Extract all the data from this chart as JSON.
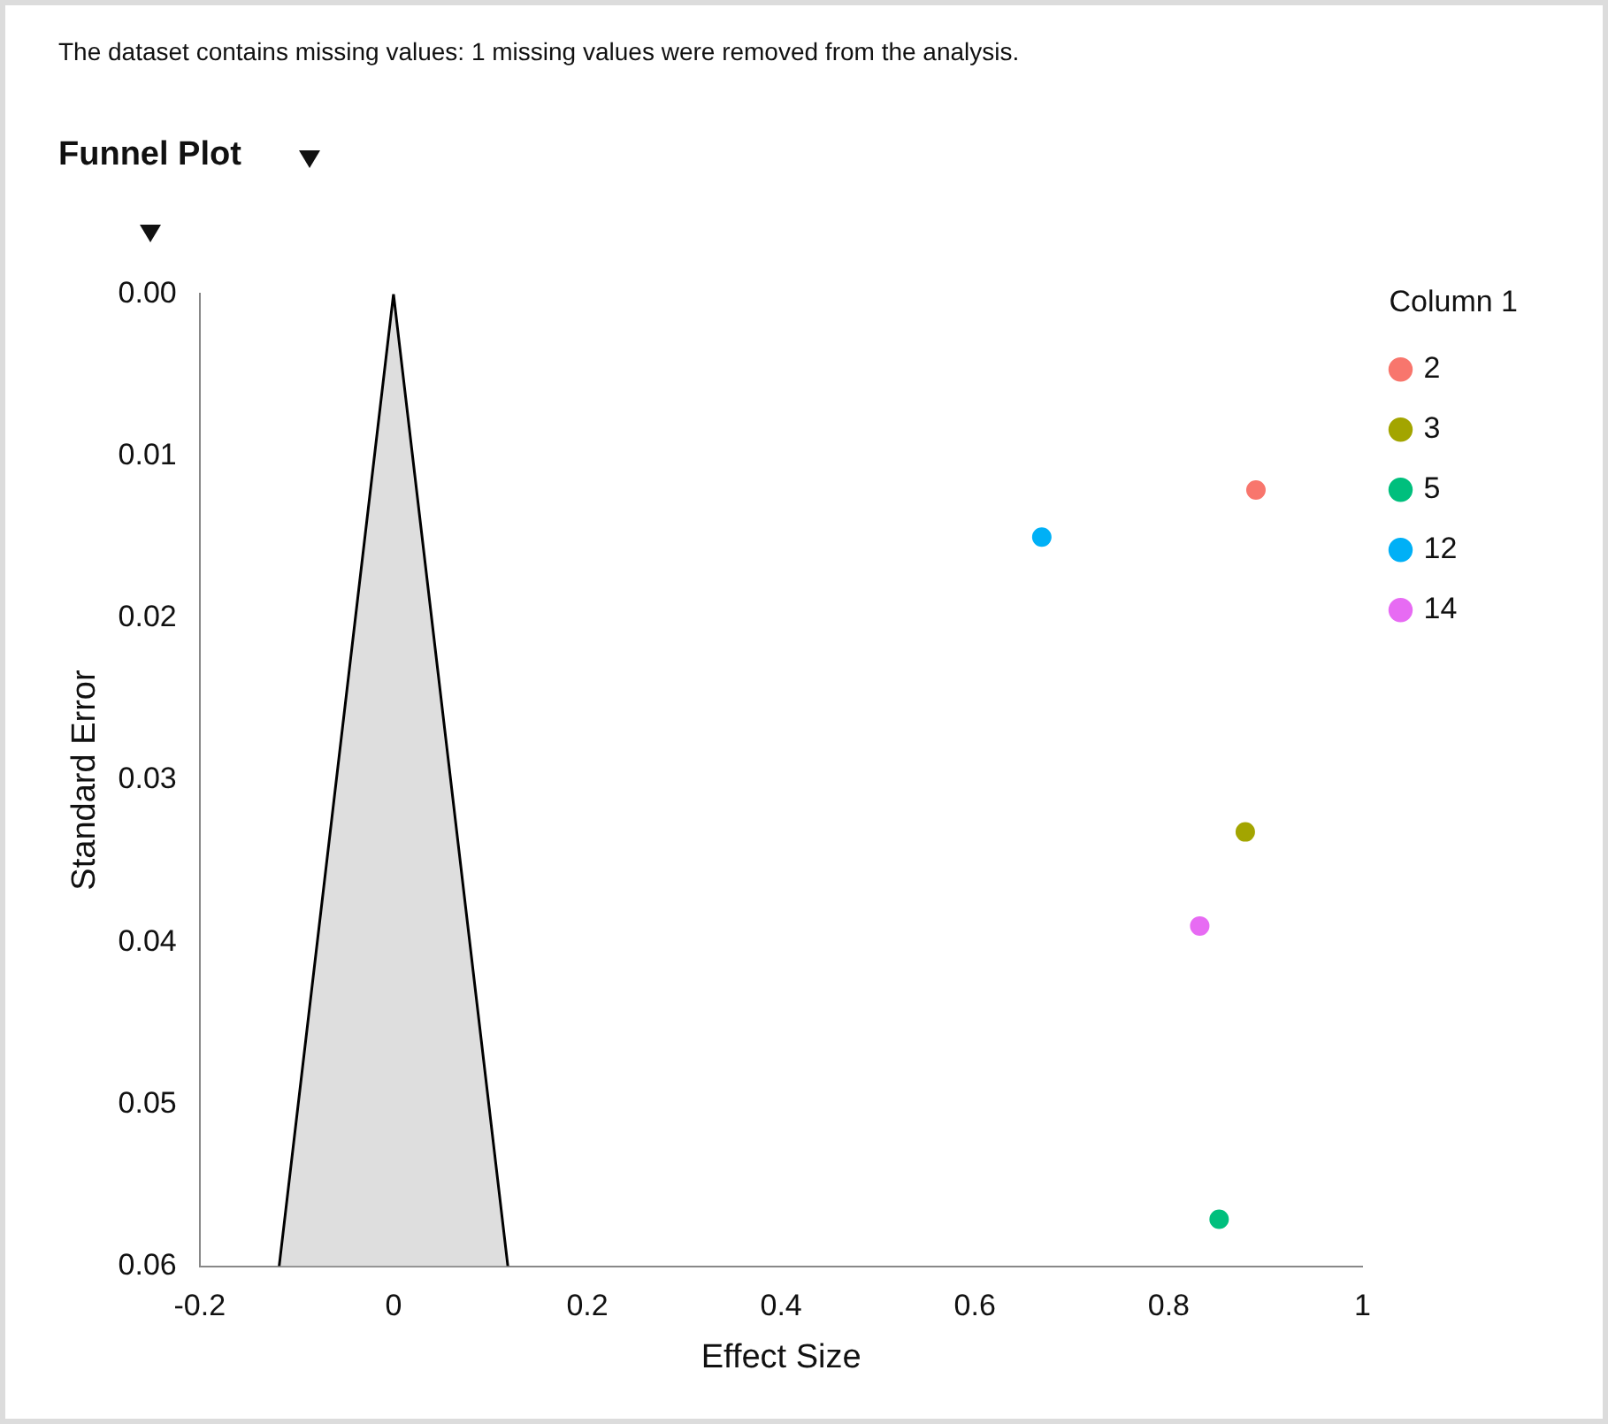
{
  "chart_data": {
    "type": "scatter",
    "title": "Funnel Plot",
    "xlabel": "Effect Size",
    "ylabel": "Standard Error",
    "legend_title": "Column 1",
    "annotations": [
      "The dataset contains missing values: 1 missing values were removed from the analysis."
    ],
    "series": [
      {
        "type": "area",
        "marker": "none",
        "color": "#dedede",
        "x": [
          -0.118,
          0,
          0.118
        ],
        "values": [
          0.06,
          0,
          0.06
        ]
      },
      {
        "name": "2",
        "color": "#f8766d",
        "x": [
          0.89
        ],
        "values": [
          0.0121
        ]
      },
      {
        "name": "3",
        "color": "#a3a500",
        "x": [
          0.879
        ],
        "values": [
          0.0332
        ]
      },
      {
        "name": "5",
        "color": "#00bf7d",
        "x": [
          0.852
        ],
        "values": [
          0.0571
        ]
      },
      {
        "name": "12",
        "color": "#00b0f6",
        "x": [
          0.669
        ],
        "values": [
          0.015
        ]
      },
      {
        "name": "14",
        "color": "#e76bf3",
        "x": [
          0.832
        ],
        "values": [
          0.039
        ]
      }
    ],
    "xlim": [
      -0.2,
      1
    ],
    "xticks": [
      -0.2,
      0,
      0.2,
      0.4,
      0.6,
      0.8,
      1
    ],
    "ylim": [
      0.06,
      0
    ],
    "yticks": [
      {
        "value": 0,
        "label": "0.00"
      },
      {
        "value": 0.01,
        "label": "0.01"
      },
      {
        "value": 0.02,
        "label": "0.02"
      },
      {
        "value": 0.03,
        "label": "0.03"
      },
      {
        "value": 0.04,
        "label": "0.04"
      },
      {
        "value": 0.05,
        "label": "0.05"
      },
      {
        "value": 0.06,
        "label": "0.06"
      }
    ],
    "grid": false,
    "legend": "top right",
    "marker": "circle"
  }
}
